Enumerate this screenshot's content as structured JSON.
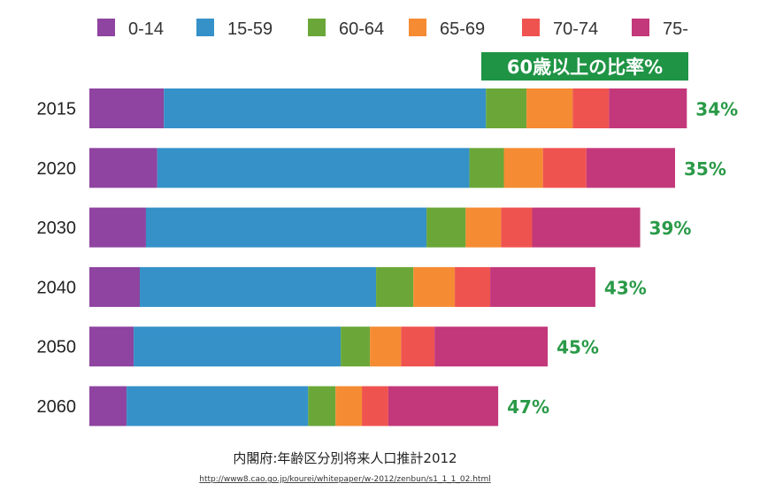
{
  "chart_data": {
    "type": "bar",
    "orientation": "horizontal",
    "stacked": true,
    "title": "60歳以上の比率%",
    "unit": "population (millions, approx.)",
    "categories": [
      "2015",
      "2020",
      "2030",
      "2040",
      "2050",
      "2060"
    ],
    "series": [
      {
        "name": "0-14",
        "color": "#8e44a0",
        "values": [
          15.8,
          14.4,
          12.0,
          10.7,
          9.4,
          7.9
        ]
      },
      {
        "name": "15-59",
        "color": "#3591c8",
        "values": [
          68.3,
          66.2,
          59.5,
          50.1,
          43.9,
          38.5
        ]
      },
      {
        "name": "60-64",
        "color": "#6aa738",
        "values": [
          8.6,
          7.3,
          8.3,
          7.9,
          6.2,
          5.8
        ]
      },
      {
        "name": "65-69",
        "color": "#f58b33",
        "values": [
          9.8,
          8.3,
          7.5,
          8.8,
          6.6,
          5.6
        ]
      },
      {
        "name": "70-74",
        "color": "#ef5350",
        "values": [
          7.7,
          9.2,
          6.6,
          7.5,
          7.1,
          5.6
        ]
      },
      {
        "name": "75-",
        "color": "#c2387a",
        "values": [
          16.5,
          18.8,
          22.9,
          22.3,
          24.0,
          23.3
        ]
      }
    ],
    "data_labels": [
      "34%",
      "35%",
      "39%",
      "43%",
      "45%",
      "47%"
    ],
    "legend_position": "top",
    "source": "内閣府:年齢区分別将来人口推計2012",
    "source_url": "http://www8.cao.go.jp/kourei/whitepaper/w-2012/zenbun/s1_1_1_02.html",
    "label_color": "#2a9a48",
    "badge_color": "#1f9444"
  }
}
